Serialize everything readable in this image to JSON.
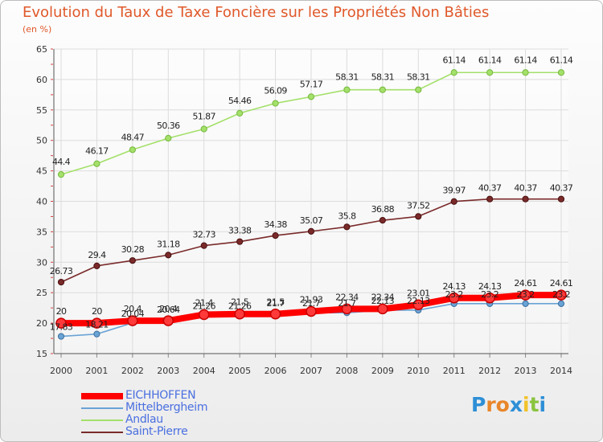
{
  "title": "Evolution du Taux de Taxe Foncière sur les Propriétés Non Bâties",
  "subtitle": "(en %)",
  "colors": {
    "title": "#e0582a",
    "legend_text": "#4a6fe0",
    "grid": "#dcdcdc",
    "axis_labels": "#333333"
  },
  "logo": {
    "letters": [
      "P",
      "r",
      "o",
      "x",
      "i",
      "t",
      "i"
    ],
    "colors": [
      "#2e8fd6",
      "#e8862a",
      "#e8862a",
      "#2e8fd6",
      "#f2c229",
      "#8ac43f",
      "#2e8fd6"
    ]
  },
  "chart_data": {
    "type": "line",
    "title": "Evolution du Taux de Taxe Foncière sur les Propriétés Non Bâties",
    "ylabel": "(en %)",
    "xlabel": "",
    "x": [
      "2000",
      "2001",
      "2002",
      "2003",
      "2004",
      "2005",
      "2006",
      "2007",
      "2008",
      "2009",
      "2010",
      "2011",
      "2012",
      "2013",
      "2014"
    ],
    "ylim": [
      15,
      65
    ],
    "yticks": [
      15,
      20,
      25,
      30,
      35,
      40,
      45,
      50,
      55,
      60,
      65
    ],
    "grid": true,
    "legend_position": "bottom-left",
    "series": [
      {
        "name": "EICHHOFFEN",
        "color": "#ff0000",
        "values": [
          20,
          20,
          20.4,
          20.4,
          21.4,
          21.5,
          21.5,
          21.93,
          22.34,
          22.34,
          23.01,
          24.13,
          24.13,
          24.61,
          24.61
        ],
        "labels": [
          "20",
          "20",
          "20.4",
          "20.4",
          "21.4",
          "21.5",
          "21.5",
          "21.93",
          "22.34",
          "22.34",
          "23.01",
          "24.13",
          "24.13",
          "24.61",
          "24.61"
        ]
      },
      {
        "name": "Mittelbergheim",
        "color": "#6aa3d5",
        "values": [
          17.83,
          18.21,
          20.04,
          20.64,
          21.26,
          21.26,
          21.7,
          21.7,
          21.7,
          22.13,
          22.13,
          23.2,
          23.2,
          23.2,
          23.2
        ],
        "labels": [
          "17.83",
          "18.21",
          "20.04",
          "20.64",
          "21.26",
          "21.26",
          "21.7",
          "21.7",
          "21.7",
          "22.13",
          "22.13",
          "23.2",
          "23.2",
          "23.2",
          "23.2"
        ]
      },
      {
        "name": "Andlau",
        "color": "#a4e06a",
        "values": [
          44.4,
          46.17,
          48.47,
          50.36,
          51.87,
          54.46,
          56.09,
          57.17,
          58.31,
          58.31,
          58.31,
          61.14,
          61.14,
          61.14,
          61.14
        ],
        "labels": [
          "44.4",
          "46.17",
          "48.47",
          "50.36",
          "51.87",
          "54.46",
          "56.09",
          "57.17",
          "58.31",
          "58.31",
          "58.31",
          "61.14",
          "61.14",
          "61.14",
          "61.14"
        ]
      },
      {
        "name": "Saint-Pierre",
        "color": "#7a2a2a",
        "values": [
          26.73,
          29.4,
          30.28,
          31.18,
          32.73,
          33.38,
          34.38,
          35.07,
          35.8,
          36.88,
          37.52,
          39.97,
          40.37,
          40.37,
          40.37
        ],
        "labels": [
          "26.73",
          "29.4",
          "30.28",
          "31.18",
          "32.73",
          "33.38",
          "34.38",
          "35.07",
          "35.8",
          "36.88",
          "37.52",
          "39.97",
          "40.37",
          "40.37",
          "40.37"
        ]
      }
    ]
  }
}
